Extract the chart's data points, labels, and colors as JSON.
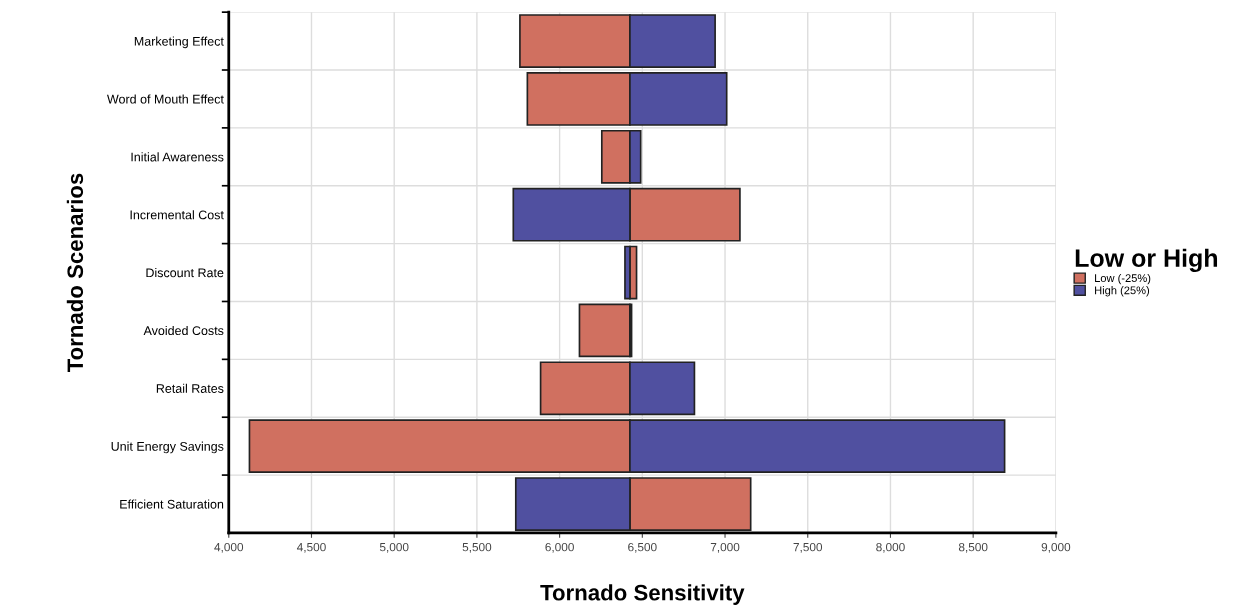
{
  "chart_data": {
    "type": "bar",
    "orientation": "horizontal",
    "stacked": false,
    "categories": [
      "Marketing Effect",
      "Word of Mouth Effect",
      "Initial Awareness",
      "Incremental Cost",
      "Discount Rate",
      "Avoided Costs",
      "Retail Rates",
      "Unit Energy Savings",
      "Efficient Saturation"
    ],
    "series": [
      {
        "name": "Low (-25%)",
        "color": "#d07060",
        "base": [
          5760,
          5805,
          6255,
          6425,
          6425,
          6120,
          5885,
          4125,
          6425
        ],
        "values": [
          665,
          620,
          170,
          665,
          40,
          305,
          540,
          2300,
          730
        ]
      },
      {
        "name": "High (25%)",
        "color": "#5050a0",
        "base": [
          6425,
          6425,
          6425,
          5720,
          6395,
          6425,
          6425,
          6425,
          5735
        ],
        "values": [
          515,
          585,
          65,
          705,
          30,
          10,
          390,
          2265,
          690
        ]
      }
    ],
    "xlim": [
      4000,
      9000
    ],
    "xticks": [
      {
        "value": 4000,
        "label": "4,000"
      },
      {
        "value": 4500,
        "label": "4,500"
      },
      {
        "value": 5000,
        "label": "5,000"
      },
      {
        "value": 5500,
        "label": "5,500"
      },
      {
        "value": 6000,
        "label": "6,000"
      },
      {
        "value": 6500,
        "label": "6,500"
      },
      {
        "value": 7000,
        "label": "7,000"
      },
      {
        "value": 7500,
        "label": "7,500"
      },
      {
        "value": 8000,
        "label": "8,000"
      },
      {
        "value": 8500,
        "label": "8,500"
      },
      {
        "value": 9000,
        "label": "9,000"
      }
    ],
    "xlabel": "Tornado Sensitivity",
    "ylabel": "Tornado Scenarios",
    "legend_title": "Low or High",
    "legend": "right",
    "grid": true
  }
}
